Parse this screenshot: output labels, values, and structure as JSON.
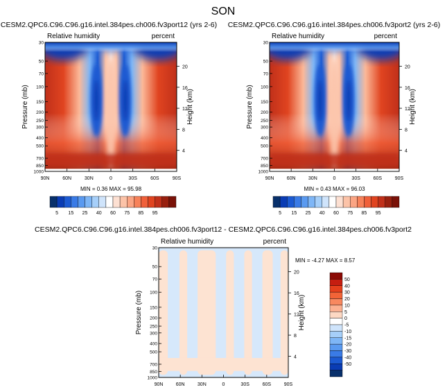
{
  "figure": {
    "title": "SON",
    "bg_color": "#ffffff",
    "frame_color": "#000000"
  },
  "chart_data": [
    {
      "type": "heatmap",
      "id": "p1",
      "title": "CESM2.QPC6.C96.C96.g16.intel.384pes.ch006.fv3port12 (yrs 2-6)",
      "left_label": "Relative humidity",
      "right_label": "percent",
      "xlabel": "",
      "ylabel": "Pressure (mb)",
      "ylabel_right": "Height (km)",
      "xticks": [
        "90N",
        "60N",
        "30N",
        "0",
        "30S",
        "60S",
        "90S"
      ],
      "xlim": [
        90,
        -90
      ],
      "ylim": [
        1000,
        30
      ],
      "yticks": [
        30,
        50,
        70,
        100,
        150,
        200,
        250,
        300,
        400,
        500,
        700,
        850,
        1000
      ],
      "yticks_right": [
        4,
        8,
        12,
        16,
        20
      ],
      "stats": "MIN =   0.36   MAX =   95.98",
      "field": "relative_humidity"
    },
    {
      "type": "heatmap",
      "id": "p2",
      "title": "CESM2.QPC6.C96.C96.g16.intel.384pes.ch006.fv3port2 (yrs 2-6)",
      "left_label": "Relative humidity",
      "right_label": "percent",
      "xlabel": "",
      "ylabel": "Pressure (mb)",
      "ylabel_right": "Height (km)",
      "xticks": [
        "90N",
        "60N",
        "30N",
        "0",
        "30S",
        "60S",
        "90S"
      ],
      "xlim": [
        90,
        -90
      ],
      "ylim": [
        1000,
        30
      ],
      "yticks": [
        30,
        50,
        70,
        100,
        150,
        200,
        250,
        300,
        400,
        500,
        700,
        850,
        1000
      ],
      "yticks_right": [
        4,
        8,
        12,
        16,
        20
      ],
      "stats": "MIN =   0.43   MAX =   96.03",
      "field": "relative_humidity"
    },
    {
      "type": "heatmap",
      "id": "p3",
      "title": "CESM2.QPC6.C96.C96.g16.intel.384pes.ch006.fv3port12 - CESM2.QPC6.C96.C96.g16.intel.384pes.ch006.fv3port2",
      "left_label": "Relative humidity",
      "right_label": "percent",
      "xlabel": "",
      "ylabel": "Pressure (mb)",
      "ylabel_right": "Height (km)",
      "xticks": [
        "90N",
        "60N",
        "30N",
        "0",
        "30S",
        "60S",
        "90S"
      ],
      "xlim": [
        90,
        -90
      ],
      "ylim": [
        1000,
        30
      ],
      "yticks": [
        30,
        50,
        70,
        100,
        150,
        200,
        250,
        300,
        400,
        500,
        700,
        850,
        1000
      ],
      "yticks_right": [
        4,
        8,
        12,
        16,
        20
      ],
      "stats": "MIN =  -4.27   MAX =   8.57",
      "field": "difference"
    }
  ],
  "colorbars": {
    "rh": {
      "labels": [
        "5",
        "15",
        "25",
        "40",
        "60",
        "75",
        "85",
        "95"
      ],
      "colors": [
        "#08306b",
        "#0a3cb4",
        "#1c5ad2",
        "#3a7be6",
        "#5a9af0",
        "#7eb6f6",
        "#a6cff9",
        "#cfe4fb",
        "#ffffff",
        "#fde0d2",
        "#fcc3a8",
        "#fba584",
        "#f7825a",
        "#f0603a",
        "#e04420",
        "#c0301a",
        "#98200f",
        "#7a1208"
      ]
    },
    "diff": {
      "labels": [
        "50",
        "40",
        "30",
        "20",
        "10",
        "5",
        "0",
        "-5",
        "-10",
        "-15",
        "-20",
        "-30",
        "-40",
        "-50"
      ],
      "colors": [
        "#8b0a05",
        "#c61e10",
        "#e5401c",
        "#f26437",
        "#f8885f",
        "#fcb192",
        "#fdd8c3",
        "#ffffff",
        "#cfe4fb",
        "#a6cff9",
        "#7eb6f6",
        "#5a9af0",
        "#3a7be6",
        "#1c5ad2",
        "#0a3cb4",
        "#08306b"
      ]
    }
  }
}
